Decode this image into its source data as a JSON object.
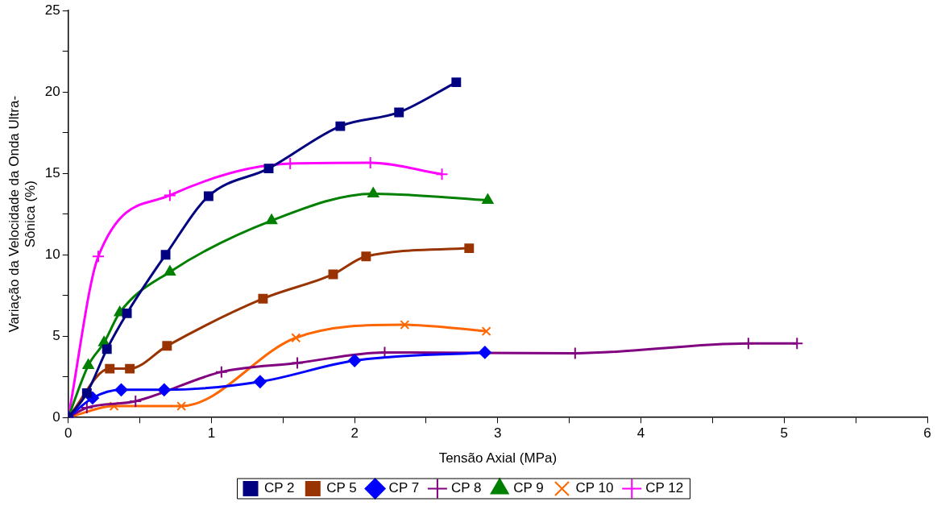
{
  "chart_data": {
    "type": "line",
    "xlabel": "Tensão Axial (MPa)",
    "ylabel": "Variação da Velocidade da Onda Ultra-\nSônica (%)",
    "xlim": [
      0,
      6
    ],
    "xticks": [
      0,
      {
        "value": 0.5,
        "label": null
      },
      1,
      {
        "value": 1.5,
        "label": null
      },
      2,
      {
        "value": 2.5,
        "label": null
      },
      3,
      {
        "value": 3.5,
        "label": null
      },
      4,
      {
        "value": 4.5,
        "label": null
      },
      5,
      {
        "value": 5.5,
        "label": null
      },
      6
    ],
    "ylim": [
      0,
      25
    ],
    "yticks": [
      0,
      {
        "value": 2.5,
        "label": null
      },
      5,
      {
        "value": 7.5,
        "label": null
      },
      10,
      {
        "value": 12.5,
        "label": null
      },
      15,
      {
        "value": 17.5,
        "label": null
      },
      20,
      {
        "value": 22.5,
        "label": null
      },
      25
    ],
    "grid": false,
    "legend": "bottom",
    "line_style": "solid",
    "series": [
      {
        "name": "CP 2",
        "color": "#000080",
        "marker": "square",
        "x": [
          0,
          0.13,
          0.27,
          0.41,
          0.68,
          0.98,
          1.4,
          1.9,
          2.31,
          2.71
        ],
        "values": [
          0,
          1.5,
          4.2,
          6.4,
          10,
          13.6,
          15.3,
          17.9,
          18.75,
          20.6
        ]
      },
      {
        "name": "CP 5",
        "color": "#993300",
        "marker": "square",
        "x": [
          0,
          0.29,
          0.43,
          0.69,
          1.36,
          1.85,
          2.08,
          2.8
        ],
        "values": [
          0,
          3,
          3,
          4.4,
          7.3,
          8.8,
          9.9,
          10.4
        ]
      },
      {
        "name": "CP 7",
        "color": "#0000ff",
        "marker": "diamond",
        "x": [
          0,
          0.17,
          0.37,
          0.67,
          1.34,
          2,
          2.91
        ],
        "values": [
          0,
          1.2,
          1.7,
          1.7,
          2.2,
          3.5,
          4
        ]
      },
      {
        "name": "CP 8",
        "color": "#800080",
        "marker": "cross",
        "x": [
          0,
          0.13,
          0.47,
          1.07,
          1.6,
          2.21,
          3.54,
          4.75,
          5.09
        ],
        "values": [
          0,
          0.6,
          1,
          2.8,
          3.35,
          4,
          3.95,
          4.55,
          4.55
        ]
      },
      {
        "name": "CP 9",
        "color": "#008000",
        "marker": "triangle",
        "x": [
          0,
          0.14,
          0.25,
          0.36,
          0.71,
          1.42,
          2.13,
          2.93
        ],
        "values": [
          0,
          3.2,
          4.6,
          6.45,
          8.95,
          12.1,
          13.75,
          13.35
        ]
      },
      {
        "name": "CP 10",
        "color": "#ff6600",
        "marker": "x",
        "x": [
          0,
          0.32,
          0.79,
          1.59,
          2.35,
          2.92
        ],
        "values": [
          0,
          0.7,
          0.7,
          4.9,
          5.7,
          5.3
        ]
      },
      {
        "name": "CP 12",
        "color": "#ff00ff",
        "marker": "cross",
        "x": [
          0,
          0.21,
          0.71,
          1.55,
          2.11,
          2.61
        ],
        "values": [
          0,
          9.9,
          13.65,
          15.6,
          15.65,
          14.95
        ]
      }
    ]
  }
}
